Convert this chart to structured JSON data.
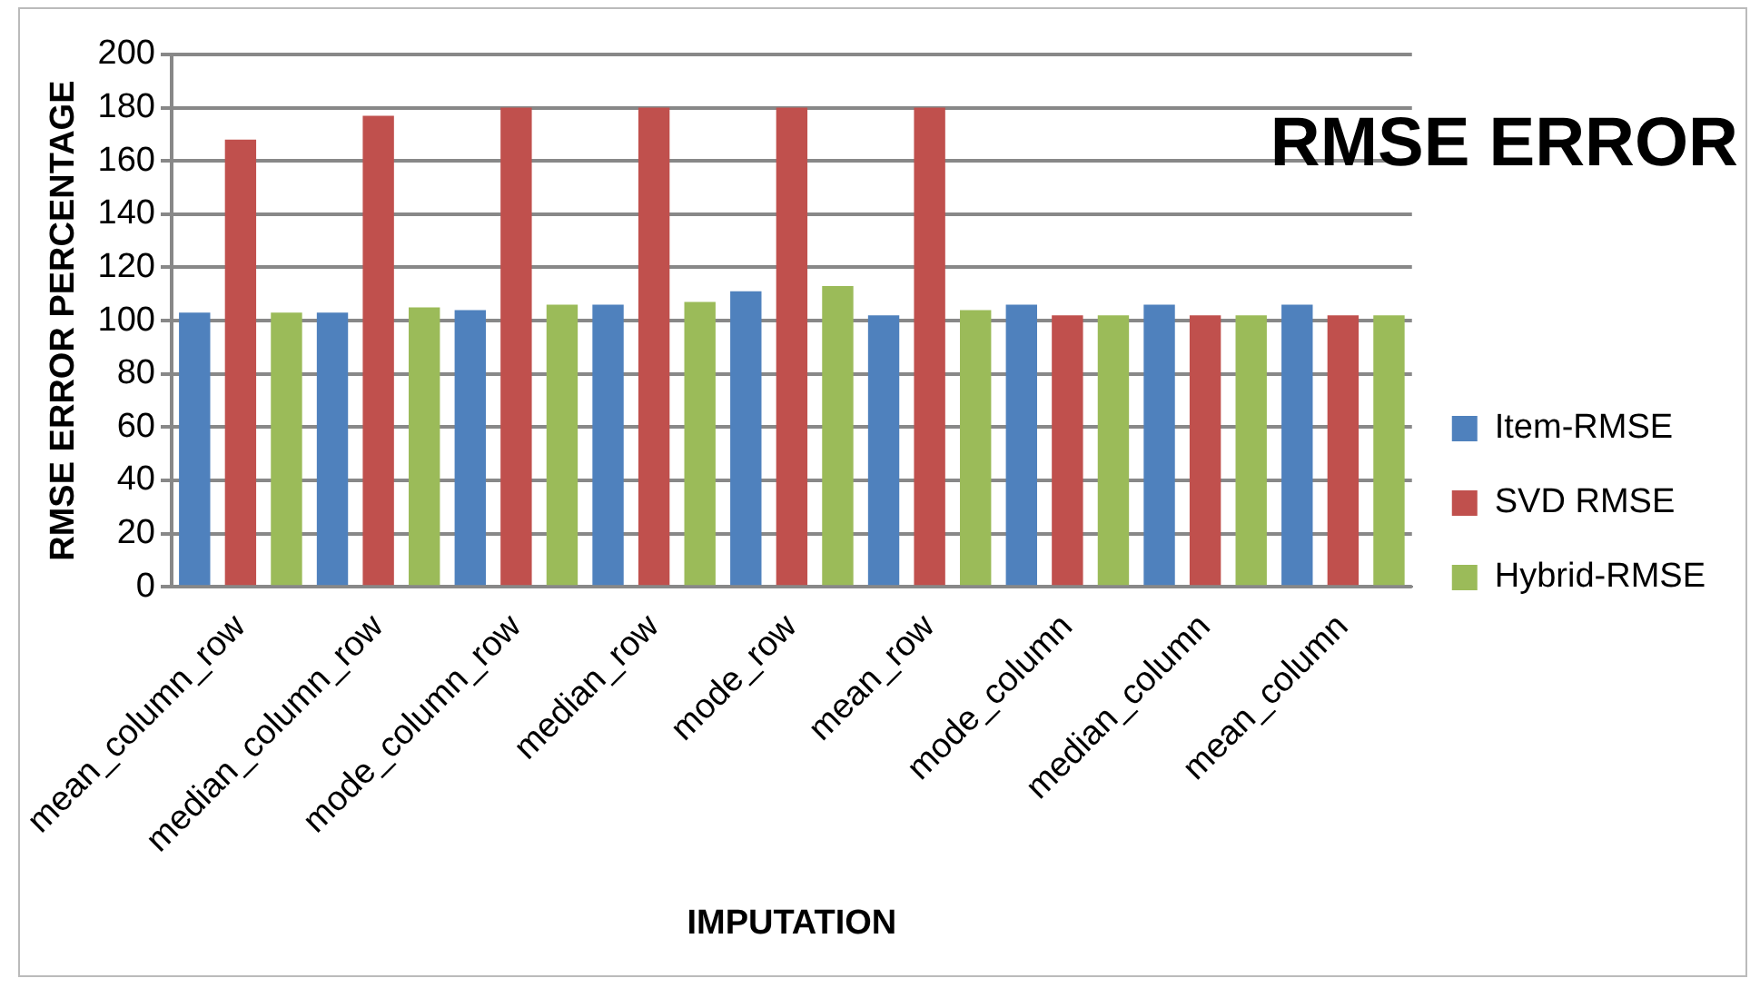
{
  "chart_data": {
    "type": "bar",
    "title": "RMSE ERROR",
    "xlabel": "IMPUTATION",
    "ylabel": "RMSE ERROR PERCENTAGE",
    "categories": [
      "mean_column_row",
      "median_column_row",
      "mode_column_row",
      "median_row",
      "mode_row",
      "mean_row",
      "mode_column",
      "median_column",
      "mean_column"
    ],
    "series": [
      {
        "name": "Item-RMSE",
        "color": "#4f81bd",
        "values": [
          103,
          103,
          104,
          106,
          111,
          102,
          106,
          106,
          106
        ]
      },
      {
        "name": "SVD RMSE",
        "color": "#c0504d",
        "values": [
          168,
          177,
          180,
          180,
          180,
          180,
          102,
          102,
          102
        ]
      },
      {
        "name": "Hybrid-RMSE",
        "color": "#9bbb59",
        "values": [
          103,
          105,
          106,
          107,
          113,
          104,
          102,
          102,
          102
        ]
      }
    ],
    "ylim": [
      0,
      200
    ],
    "yticks": [
      0,
      20,
      40,
      60,
      80,
      100,
      120,
      140,
      160,
      180,
      200
    ],
    "grid": "y",
    "legend": "right"
  }
}
